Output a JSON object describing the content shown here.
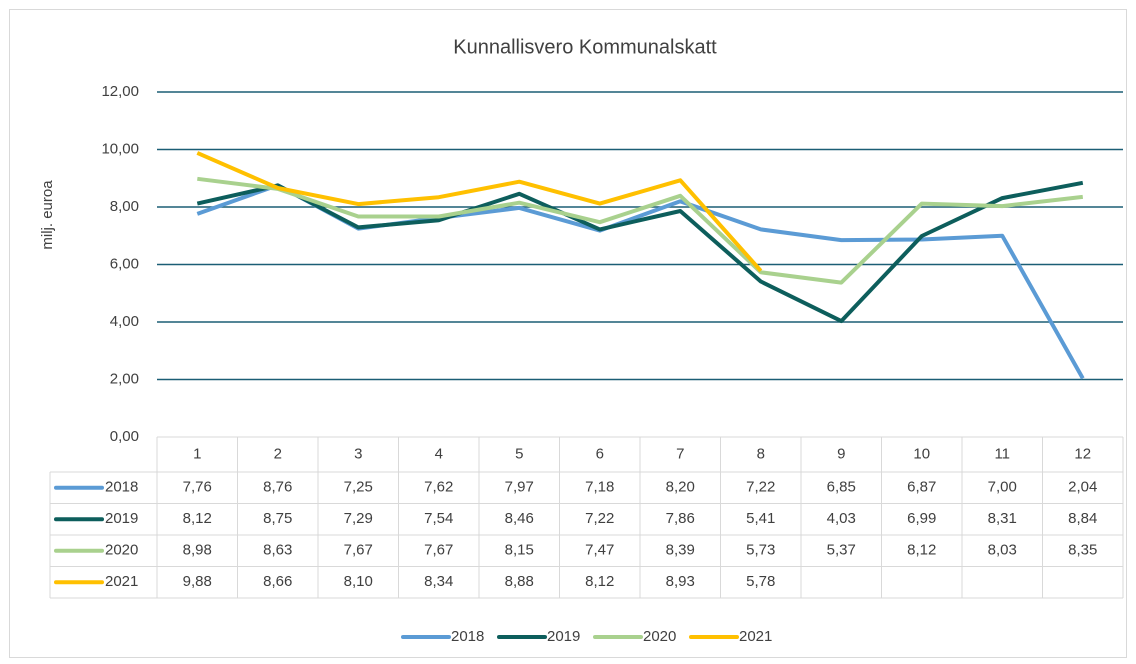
{
  "chart_data": {
    "type": "line",
    "title": "Kunnallisvero Kommunalskatt",
    "y_label": "milj. euroa",
    "categories": [
      "1",
      "2",
      "3",
      "4",
      "5",
      "6",
      "7",
      "8",
      "9",
      "10",
      "11",
      "12"
    ],
    "ylim": [
      0,
      12
    ],
    "yticks": [
      {
        "value": 0,
        "label": "0,00"
      },
      {
        "value": 2,
        "label": "2,00"
      },
      {
        "value": 4,
        "label": "4,00"
      },
      {
        "value": 6,
        "label": "6,00"
      },
      {
        "value": 8,
        "label": "8,00"
      },
      {
        "value": 10,
        "label": "10,00"
      },
      {
        "value": 12,
        "label": "12,00"
      }
    ],
    "grid": true,
    "legend": "bottom",
    "series": [
      {
        "name": "2018",
        "color": "#5b9bd5",
        "values": [
          7.76,
          8.76,
          7.25,
          7.62,
          7.97,
          7.18,
          8.2,
          7.22,
          6.85,
          6.87,
          7.0,
          2.04
        ],
        "value_labels": [
          "7,76",
          "8,76",
          "7,25",
          "7,62",
          "7,97",
          "7,18",
          "8,20",
          "7,22",
          "6,85",
          "6,87",
          "7,00",
          "2,04"
        ]
      },
      {
        "name": "2019",
        "color": "#0d5e5c",
        "values": [
          8.12,
          8.75,
          7.29,
          7.54,
          8.46,
          7.22,
          7.86,
          5.41,
          4.03,
          6.99,
          8.31,
          8.84
        ],
        "value_labels": [
          "8,12",
          "8,75",
          "7,29",
          "7,54",
          "8,46",
          "7,22",
          "7,86",
          "5,41",
          "4,03",
          "6,99",
          "8,31",
          "8,84"
        ]
      },
      {
        "name": "2020",
        "color": "#a9d18e",
        "values": [
          8.98,
          8.63,
          7.67,
          7.67,
          8.15,
          7.47,
          8.39,
          5.73,
          5.37,
          8.12,
          8.03,
          8.35
        ],
        "value_labels": [
          "8,98",
          "8,63",
          "7,67",
          "7,67",
          "8,15",
          "7,47",
          "8,39",
          "5,73",
          "5,37",
          "8,12",
          "8,03",
          "8,35"
        ]
      },
      {
        "name": "2021",
        "color": "#ffc000",
        "values": [
          9.88,
          8.66,
          8.1,
          8.34,
          8.88,
          8.12,
          8.93,
          5.78,
          null,
          null,
          null,
          null
        ],
        "value_labels": [
          "9,88",
          "8,66",
          "8,10",
          "8,34",
          "8,88",
          "8,12",
          "8,93",
          "5,78",
          null,
          null,
          null,
          null
        ]
      }
    ]
  }
}
